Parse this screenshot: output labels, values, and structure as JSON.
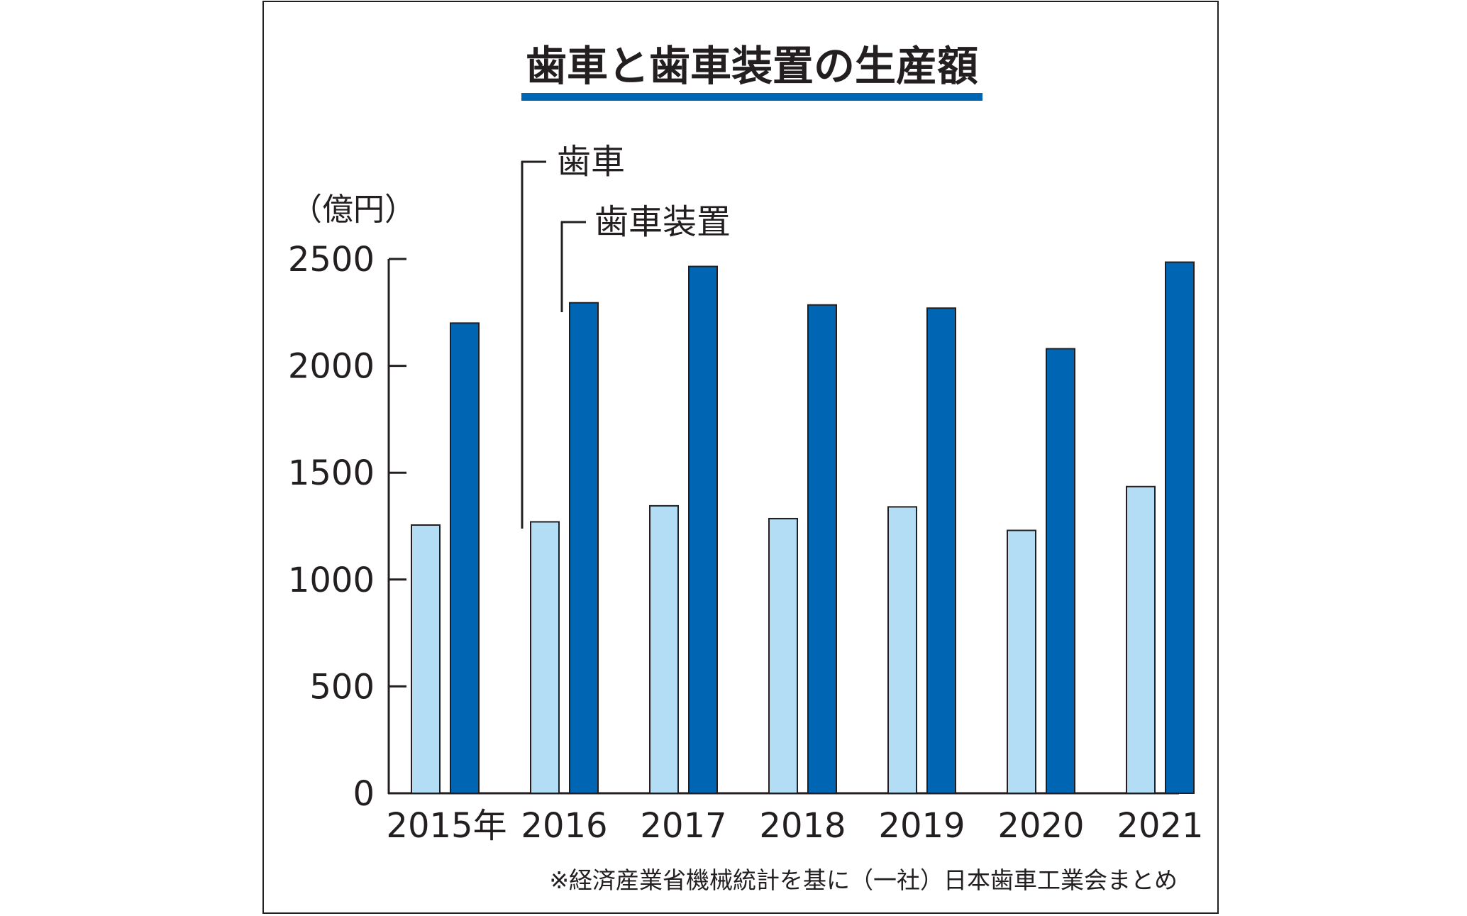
{
  "chart_data": {
    "type": "bar",
    "title": "歯車と歯車装置の生産額",
    "unit_label": "（億円）",
    "categories": [
      "2015年",
      "2016",
      "2017",
      "2018",
      "2019",
      "2020",
      "2021"
    ],
    "series": [
      {
        "name": "歯車",
        "color": "#b3ddf5",
        "values": [
          1255,
          1270,
          1345,
          1285,
          1340,
          1230,
          1435
        ]
      },
      {
        "name": "歯車装置",
        "color": "#0066b3",
        "values": [
          2200,
          2295,
          2465,
          2285,
          2270,
          2080,
          2485
        ]
      }
    ],
    "ylim": [
      0,
      2500
    ],
    "yticks": [
      0,
      500,
      1000,
      1500,
      2000,
      2500
    ],
    "ytick_labels": [
      "0",
      "500",
      "1000",
      "1500",
      "2000",
      "2500"
    ],
    "grid": false,
    "legend_placement": "top-left (callout lines pointing to 2016 bars)",
    "source_note": "※経済産業省機械統計を基に（一社）日本歯車工業会まとめ",
    "title_underline_color": "#0066b3"
  }
}
